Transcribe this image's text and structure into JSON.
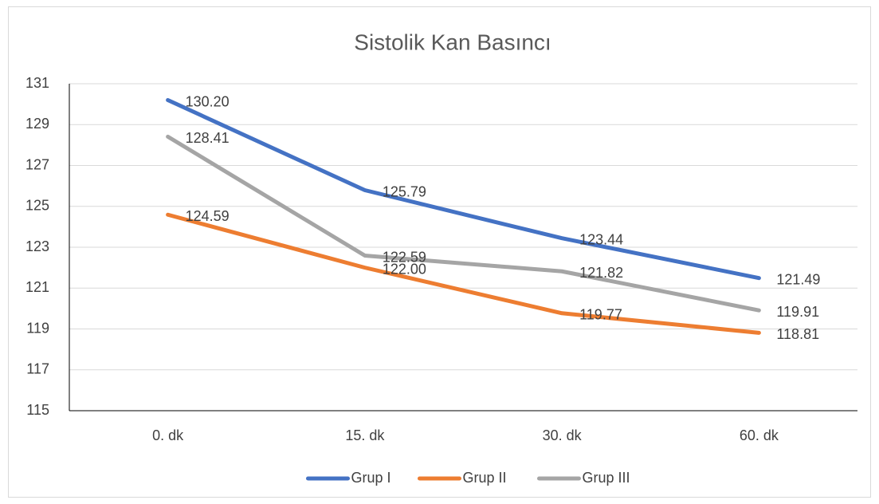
{
  "chart_data": {
    "type": "line",
    "title": "Sistolik Kan Basıncı",
    "categories": [
      "0. dk",
      "15. dk",
      "30. dk",
      "60. dk"
    ],
    "series": [
      {
        "name": "Grup I",
        "color": "#4472c4",
        "values": [
          130.2,
          125.79,
          123.44,
          121.49
        ],
        "value_labels": [
          "130.20",
          "125.79",
          "123.44",
          "121.49"
        ]
      },
      {
        "name": "Grup II",
        "color": "#ed7d31",
        "values": [
          124.59,
          122,
          119.77,
          118.81
        ],
        "value_labels": [
          "124.59",
          "122.00",
          "119.77",
          "118.81"
        ]
      },
      {
        "name": "Grup III",
        "color": "#a5a5a5",
        "values": [
          128.41,
          122.59,
          121.82,
          119.91
        ],
        "value_labels": [
          "128.41",
          "122.59",
          "121.82",
          "119.91"
        ]
      }
    ],
    "ylim": [
      115,
      131
    ],
    "yticks": [
      115,
      117,
      119,
      121,
      123,
      125,
      127,
      129,
      131
    ],
    "grid": true,
    "legend": "bottom"
  }
}
